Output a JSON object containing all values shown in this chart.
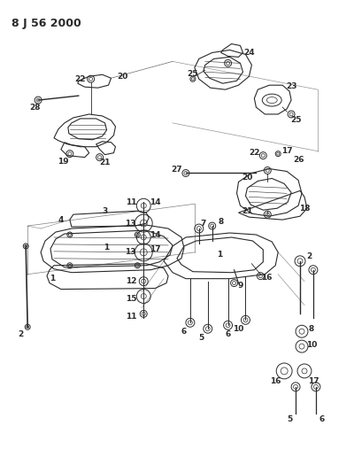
{
  "title": "8 J 56 2000",
  "bg_color": "#ffffff",
  "line_color": "#2a2a2a",
  "fig_width": 4.0,
  "fig_height": 5.33,
  "dpi": 100,
  "label_fs": 6.5,
  "title_fs": 9
}
